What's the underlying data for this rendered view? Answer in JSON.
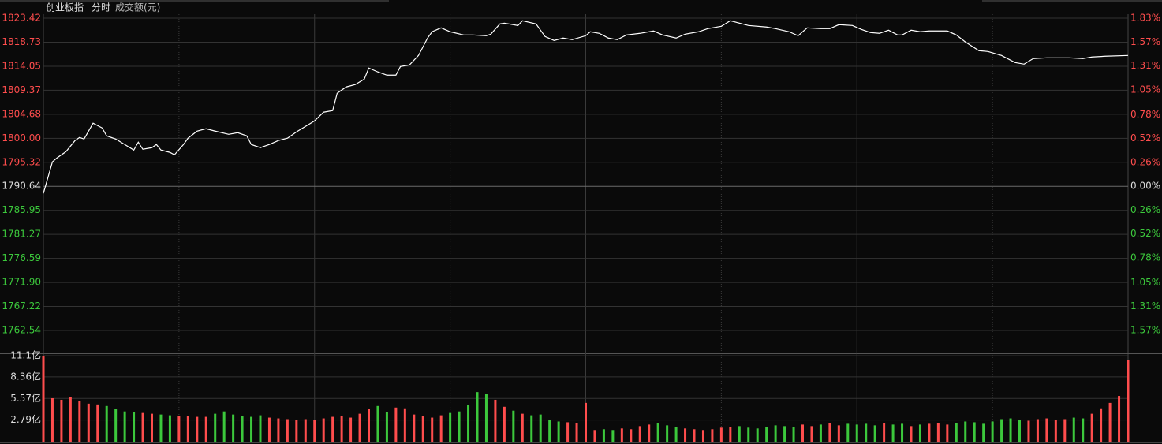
{
  "chart_data": [
    {
      "type": "line",
      "title": "创业板指",
      "subtitle": "分时",
      "color": "#ffffff",
      "up_color": "#ff4d4d",
      "down_color": "#3cc83c",
      "flat_color": "#dddddd",
      "xlim": [
        0,
        240
      ],
      "x": [
        0,
        2,
        3,
        5,
        7,
        8,
        9,
        11,
        13,
        14,
        16,
        18,
        20,
        21,
        22,
        24,
        25,
        26,
        28,
        29,
        31,
        32,
        34,
        36,
        38,
        41,
        43,
        45,
        46,
        48,
        50,
        52,
        54,
        56,
        58,
        60,
        62,
        64,
        65,
        67,
        69,
        71,
        72,
        74,
        76,
        78,
        79,
        81,
        83,
        85,
        86,
        88,
        90,
        93,
        95,
        98,
        99,
        101,
        102,
        105,
        106,
        109,
        111,
        113,
        115,
        117,
        120,
        121,
        123,
        125,
        127,
        129,
        132,
        135,
        137,
        140,
        142,
        145,
        147,
        150,
        152,
        154,
        156,
        160,
        162,
        165,
        167,
        169,
        172,
        174,
        176,
        179,
        181,
        183,
        185,
        187,
        189,
        190,
        192,
        194,
        196,
        200,
        202,
        204,
        207,
        209,
        212,
        215,
        217,
        219,
        222,
        224,
        227,
        230,
        232,
        235,
        240
      ],
      "values": [
        1789.26,
        1795.41,
        1796.17,
        1797.4,
        1799.56,
        1800.17,
        1799.86,
        1802.94,
        1802.01,
        1800.48,
        1799.86,
        1798.79,
        1797.71,
        1799.25,
        1797.86,
        1798.17,
        1798.79,
        1797.71,
        1797.25,
        1796.79,
        1798.79,
        1800.02,
        1801.4,
        1801.86,
        1801.4,
        1800.78,
        1801.09,
        1800.48,
        1798.79,
        1798.17,
        1798.79,
        1799.56,
        1800.02,
        1801.25,
        1802.32,
        1803.4,
        1805.09,
        1805.4,
        1808.78,
        1810.01,
        1810.47,
        1811.54,
        1813.7,
        1812.93,
        1812.31,
        1812.31,
        1814.0,
        1814.31,
        1816.15,
        1819.54,
        1820.77,
        1821.53,
        1820.77,
        1820.15,
        1820.15,
        1820.0,
        1820.3,
        1822.3,
        1822.45,
        1821.99,
        1822.92,
        1822.3,
        1819.84,
        1819.07,
        1819.54,
        1819.23,
        1820.0,
        1820.77,
        1820.46,
        1819.54,
        1819.23,
        1820.15,
        1820.46,
        1820.92,
        1820.15,
        1819.54,
        1820.3,
        1820.77,
        1821.38,
        1821.84,
        1822.92,
        1822.45,
        1821.99,
        1821.69,
        1821.38,
        1820.77,
        1820.0,
        1821.53,
        1821.38,
        1821.38,
        1822.15,
        1821.99,
        1821.23,
        1820.61,
        1820.46,
        1821.07,
        1820.15,
        1820.15,
        1821.07,
        1820.77,
        1820.92,
        1820.92,
        1820.15,
        1818.77,
        1817.08,
        1816.92,
        1816.15,
        1814.77,
        1814.46,
        1815.54,
        1815.69,
        1815.69,
        1815.69,
        1815.54,
        1815.85,
        1816.0,
        1816.15
      ],
      "ylim": [
        1758.08,
        1825.73
      ],
      "yticks": [
        1823.42,
        1818.73,
        1814.05,
        1809.37,
        1804.68,
        {
          "value": 1800,
          "label": "1800.00"
        },
        1795.32,
        1790.64,
        1785.95,
        1781.27,
        1776.59,
        {
          "value": 1771.9,
          "label": "1771.90"
        },
        1767.22,
        1762.54
      ],
      "y2lim": [
        -1.82,
        1.96
      ],
      "y2ticks": [
        {
          "value": 1.83,
          "label": "1.83%"
        },
        {
          "value": 1.57,
          "label": "1.57%"
        },
        {
          "value": 1.31,
          "label": "1.31%"
        },
        {
          "value": 1.05,
          "label": "1.05%"
        },
        {
          "value": 0.78,
          "label": "0.78%"
        },
        {
          "value": 0.52,
          "label": "0.52%"
        },
        {
          "value": 0.26,
          "label": "0.26%"
        },
        {
          "value": 0,
          "label": "0.00%"
        },
        {
          "value": -0.26,
          "label": "0.26%"
        },
        {
          "value": -0.52,
          "label": "0.52%"
        },
        {
          "value": -0.78,
          "label": "0.78%"
        },
        {
          "value": -1.05,
          "label": "1.05%"
        },
        {
          "value": -1.31,
          "label": "1.31%"
        },
        {
          "value": -1.57,
          "label": "1.57%"
        }
      ],
      "grid": true
    },
    {
      "type": "bar",
      "title": "成交额(元)",
      "up_color": "#ff4d4d",
      "down_color": "#3cc83c",
      "xlim": [
        0,
        240
      ],
      "x": [
        0,
        2,
        4,
        6,
        8,
        10,
        12,
        14,
        16,
        18,
        20,
        22,
        24,
        26,
        28,
        30,
        32,
        34,
        36,
        38,
        40,
        42,
        44,
        46,
        48,
        50,
        52,
        54,
        56,
        58,
        60,
        62,
        64,
        66,
        68,
        70,
        72,
        74,
        76,
        78,
        80,
        82,
        84,
        86,
        88,
        90,
        92,
        94,
        96,
        98,
        100,
        102,
        104,
        106,
        108,
        110,
        112,
        114,
        116,
        118,
        120,
        122,
        124,
        126,
        128,
        130,
        132,
        134,
        136,
        138,
        140,
        142,
        144,
        146,
        148,
        150,
        152,
        154,
        156,
        158,
        160,
        162,
        164,
        166,
        168,
        170,
        172,
        174,
        176,
        178,
        180,
        182,
        184,
        186,
        188,
        190,
        192,
        194,
        196,
        198,
        200,
        202,
        204,
        206,
        208,
        210,
        212,
        214,
        216,
        218,
        220,
        222,
        224,
        226,
        228,
        230,
        232,
        234,
        236,
        238,
        240
      ],
      "values": [
        11.1,
        5.6,
        5.4,
        5.8,
        5.2,
        4.9,
        4.8,
        4.6,
        4.2,
        3.9,
        3.8,
        3.7,
        3.6,
        3.5,
        3.4,
        3.3,
        3.3,
        3.2,
        3.2,
        3.6,
        3.9,
        3.5,
        3.3,
        3.2,
        3.4,
        3.1,
        3.0,
        2.9,
        2.8,
        2.9,
        2.8,
        3.0,
        3.2,
        3.3,
        3.1,
        3.6,
        4.2,
        4.6,
        3.8,
        4.4,
        4.3,
        3.5,
        3.3,
        3.1,
        3.4,
        3.7,
        3.9,
        4.7,
        6.4,
        6.2,
        5.4,
        4.5,
        4.0,
        3.6,
        3.4,
        3.5,
        2.8,
        2.6,
        2.5,
        2.4,
        5.0,
        1.5,
        1.6,
        1.5,
        1.7,
        1.6,
        2.0,
        2.2,
        2.4,
        2.1,
        1.9,
        1.7,
        1.6,
        1.5,
        1.6,
        1.8,
        1.9,
        2.0,
        1.8,
        1.7,
        1.9,
        2.1,
        2.0,
        1.9,
        2.2,
        2.0,
        2.2,
        2.4,
        2.1,
        2.3,
        2.2,
        2.3,
        2.1,
        2.4,
        2.2,
        2.3,
        2.0,
        2.2,
        2.3,
        2.4,
        2.2,
        2.4,
        2.6,
        2.5,
        2.3,
        2.6,
        2.9,
        3.0,
        2.8,
        2.7,
        2.9,
        3.0,
        2.8,
        2.9,
        3.1,
        3.0,
        3.6,
        4.3,
        5.0,
        5.9,
        10.5
      ],
      "ylim": [
        0,
        11.3
      ],
      "yticks": [
        {
          "value": 11.1,
          "label": "11.1亿"
        },
        {
          "value": 8.36,
          "label": "8.36亿"
        },
        {
          "value": 5.57,
          "label": "5.57亿"
        },
        {
          "value": 2.79,
          "label": "2.79亿"
        }
      ],
      "grid": true
    }
  ]
}
